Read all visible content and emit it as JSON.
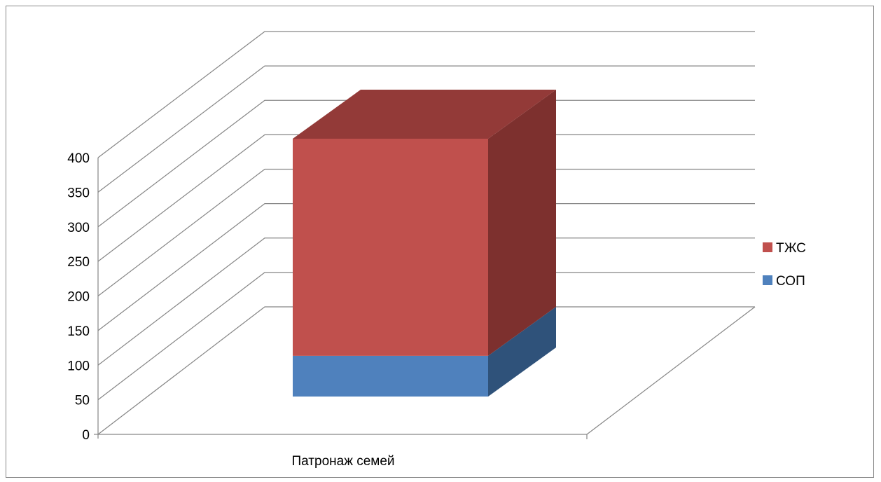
{
  "chart_data": {
    "type": "bar",
    "subtype": "3d-stacked-column",
    "categories": [
      "Патронаж семей"
    ],
    "series": [
      {
        "name": "СОП",
        "values": [
          60
        ],
        "color": "#4F81BD"
      },
      {
        "name": "ТЖС",
        "values": [
          320
        ],
        "color": "#C0504D"
      }
    ],
    "yticks": [
      "0",
      "50",
      "100",
      "150",
      "200",
      "250",
      "300",
      "350",
      "400"
    ],
    "ylim": [
      0,
      400
    ],
    "ystep": 50,
    "grid": true,
    "legend": {
      "position": "right",
      "items": [
        "ТЖС",
        "СОП"
      ]
    },
    "title": "",
    "xlabel": "",
    "ylabel": ""
  },
  "colors": {
    "sop_front": "#4F81BD",
    "sop_side": "#2F527A",
    "tzs_front": "#C0504D",
    "tzs_side": "#7D302E",
    "tzs_top": "#933A38",
    "grid": "#868686"
  }
}
